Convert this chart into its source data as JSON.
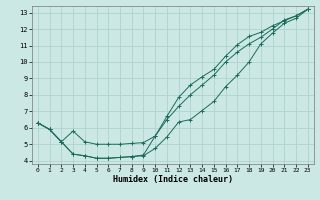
{
  "xlabel": "Humidex (Indice chaleur)",
  "bg_color": "#cce8e4",
  "grid_color": "#aacfcb",
  "line_color": "#1a6b5a",
  "xlim": [
    -0.5,
    23.5
  ],
  "ylim": [
    3.8,
    13.4
  ],
  "xticks": [
    0,
    1,
    2,
    3,
    4,
    5,
    6,
    7,
    8,
    9,
    10,
    11,
    12,
    13,
    14,
    15,
    16,
    17,
    18,
    19,
    20,
    21,
    22,
    23
  ],
  "yticks": [
    4,
    5,
    6,
    7,
    8,
    9,
    10,
    11,
    12,
    13
  ],
  "line1_x": [
    0,
    1,
    2,
    3,
    4,
    5,
    6,
    7,
    8,
    9,
    10,
    11,
    12,
    13,
    14,
    15,
    16,
    17,
    18,
    19,
    20,
    21,
    22,
    23
  ],
  "line1_y": [
    6.3,
    5.9,
    5.15,
    4.4,
    4.3,
    4.15,
    4.15,
    4.2,
    4.25,
    4.3,
    4.75,
    5.45,
    6.35,
    6.5,
    7.05,
    7.6,
    8.5,
    9.2,
    10.0,
    11.1,
    11.75,
    12.35,
    12.65,
    13.2
  ],
  "line2_x": [
    0,
    1,
    2,
    3,
    4,
    5,
    6,
    7,
    8,
    9,
    10,
    11,
    12,
    13,
    14,
    15,
    16,
    17,
    18,
    19,
    20,
    21,
    22,
    23
  ],
  "line2_y": [
    6.3,
    5.9,
    5.15,
    5.8,
    5.15,
    5.0,
    5.0,
    5.0,
    5.05,
    5.1,
    5.5,
    6.5,
    7.3,
    8.0,
    8.6,
    9.2,
    10.0,
    10.6,
    11.1,
    11.5,
    12.0,
    12.55,
    12.8,
    13.2
  ],
  "line3_x": [
    0,
    1,
    2,
    3,
    4,
    5,
    6,
    7,
    8,
    9,
    10,
    11,
    12,
    13,
    14,
    15,
    16,
    17,
    18,
    19,
    20,
    21,
    22,
    23
  ],
  "line3_y": [
    6.3,
    5.9,
    5.15,
    4.4,
    4.3,
    4.15,
    4.15,
    4.2,
    4.25,
    4.35,
    5.5,
    6.7,
    7.85,
    8.6,
    9.1,
    9.55,
    10.35,
    11.05,
    11.55,
    11.8,
    12.2,
    12.5,
    12.8,
    13.2
  ]
}
